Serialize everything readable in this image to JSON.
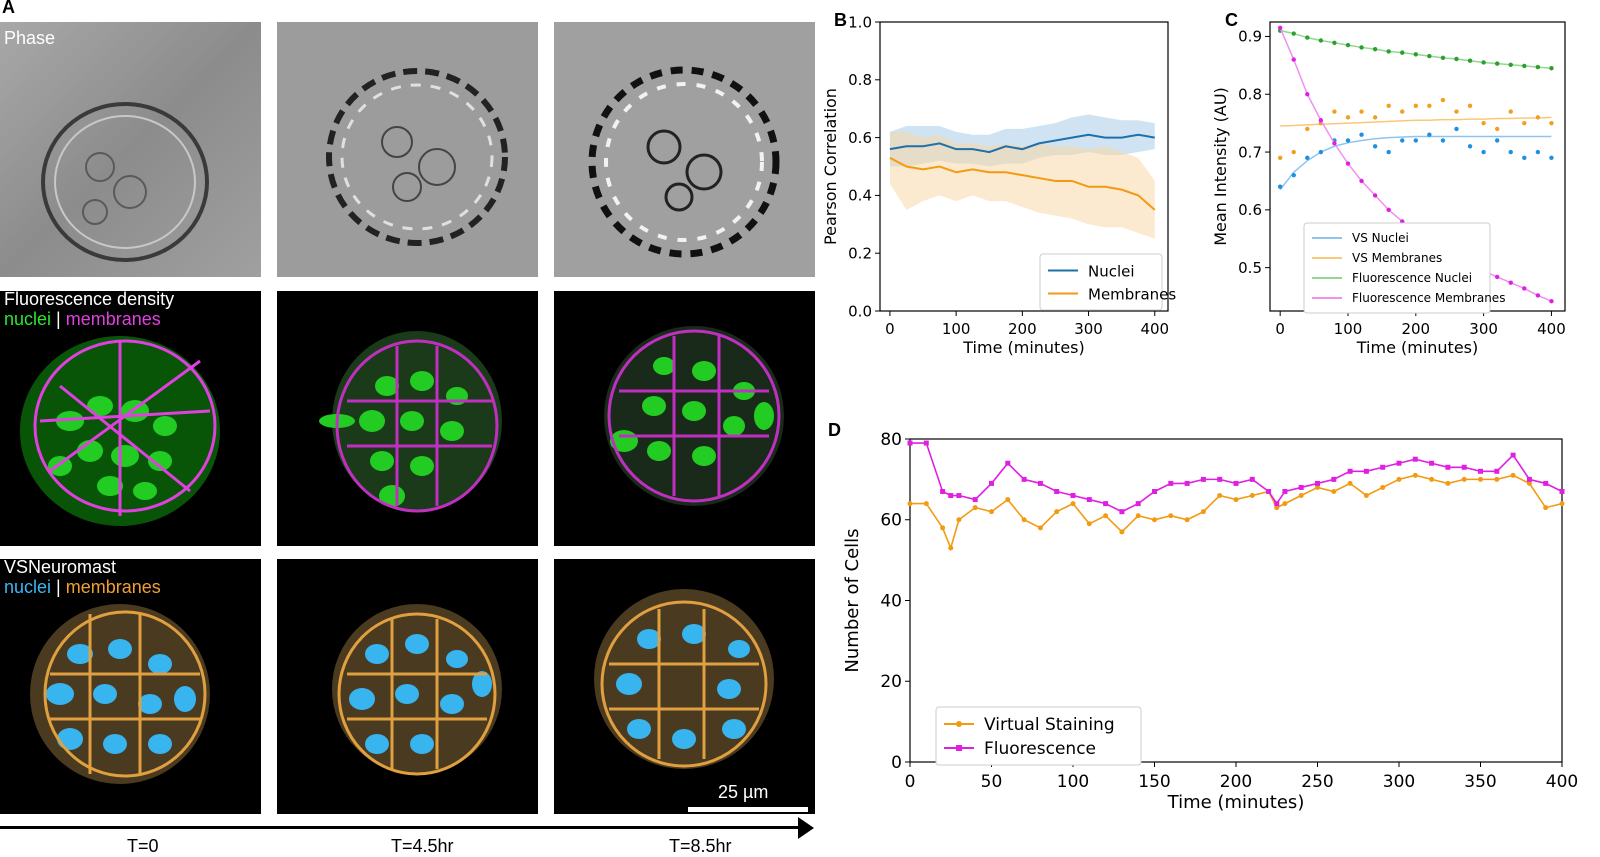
{
  "panel_letters": {
    "a": "A",
    "b": "B",
    "c": "C",
    "d": "D"
  },
  "panel_a": {
    "rows": [
      {
        "label_lines": [
          [
            {
              "text": "Phase",
              "color": "white"
            }
          ]
        ]
      },
      {
        "label_lines": [
          [
            {
              "text": "Fluorescence density",
              "color": "white"
            }
          ],
          [
            {
              "text": "nuclei",
              "color": "green"
            },
            {
              "text": " | ",
              "color": "white"
            },
            {
              "text": "membranes",
              "color": "magenta"
            }
          ]
        ]
      },
      {
        "label_lines": [
          [
            {
              "text": "VSNeuromast",
              "color": "white"
            }
          ],
          [
            {
              "text": "nuclei",
              "color": "blue"
            },
            {
              "text": " | ",
              "color": "white"
            },
            {
              "text": "membranes",
              "color": "orange"
            }
          ]
        ]
      }
    ],
    "scale_bar_label": "25 µm",
    "timepoints": [
      "T=0",
      "T=4.5hr",
      "T=8.5hr"
    ]
  },
  "chart_data": [
    {
      "panel": "B",
      "type": "line",
      "xlabel": "Time (minutes)",
      "ylabel": "Pearson Correlation",
      "xlim": [
        -15,
        420
      ],
      "ylim": [
        0.0,
        1.0
      ],
      "xticks": [
        0,
        100,
        200,
        300,
        400
      ],
      "yticks": [
        0.0,
        0.2,
        0.4,
        0.6,
        0.8,
        1.0
      ],
      "legend_position": "lower-right",
      "x": [
        0,
        25,
        50,
        75,
        100,
        125,
        150,
        175,
        200,
        225,
        250,
        275,
        300,
        325,
        350,
        375,
        400
      ],
      "series": [
        {
          "name": "Nuclei",
          "color": "#1f6fa8",
          "band_color": "#a9cce8",
          "values": [
            0.56,
            0.57,
            0.57,
            0.58,
            0.56,
            0.56,
            0.55,
            0.57,
            0.56,
            0.58,
            0.59,
            0.6,
            0.61,
            0.6,
            0.6,
            0.61,
            0.6
          ],
          "upper": [
            0.62,
            0.64,
            0.64,
            0.64,
            0.62,
            0.61,
            0.61,
            0.63,
            0.63,
            0.64,
            0.65,
            0.67,
            0.68,
            0.67,
            0.66,
            0.66,
            0.65
          ],
          "lower": [
            0.5,
            0.5,
            0.51,
            0.52,
            0.51,
            0.51,
            0.5,
            0.51,
            0.51,
            0.53,
            0.54,
            0.54,
            0.55,
            0.54,
            0.54,
            0.55,
            0.56
          ]
        },
        {
          "name": "Membranes",
          "color": "#f29b12",
          "band_color": "#f8d9a8",
          "values": [
            0.53,
            0.5,
            0.49,
            0.5,
            0.48,
            0.49,
            0.48,
            0.48,
            0.47,
            0.46,
            0.45,
            0.45,
            0.43,
            0.43,
            0.42,
            0.4,
            0.35
          ],
          "upper": [
            0.62,
            0.62,
            0.6,
            0.61,
            0.58,
            0.58,
            0.57,
            0.58,
            0.57,
            0.58,
            0.57,
            0.57,
            0.56,
            0.57,
            0.55,
            0.53,
            0.45
          ],
          "lower": [
            0.44,
            0.35,
            0.38,
            0.4,
            0.38,
            0.4,
            0.38,
            0.38,
            0.36,
            0.34,
            0.33,
            0.32,
            0.3,
            0.29,
            0.29,
            0.27,
            0.25
          ]
        }
      ]
    },
    {
      "panel": "C",
      "type": "scatter",
      "xlabel": "Time (minutes)",
      "ylabel": "Mean Intensity (AU)",
      "xlim": [
        -15,
        420
      ],
      "ylim": [
        0.425,
        0.925
      ],
      "xticks": [
        0,
        100,
        200,
        300,
        400
      ],
      "yticks": [
        0.5,
        0.6,
        0.7,
        0.8,
        0.9
      ],
      "legend_position": "lower-left",
      "x": [
        0,
        20,
        40,
        60,
        80,
        100,
        120,
        140,
        160,
        180,
        200,
        220,
        240,
        260,
        280,
        300,
        320,
        340,
        360,
        380,
        400
      ],
      "series": [
        {
          "name": "VS Nuclei",
          "color": "#1f8fe0",
          "fit_color": "#8fc4f0",
          "values": [
            0.64,
            0.66,
            0.69,
            0.7,
            0.72,
            0.72,
            0.73,
            0.71,
            0.7,
            0.72,
            0.72,
            0.73,
            0.72,
            0.74,
            0.71,
            0.7,
            0.72,
            0.7,
            0.69,
            0.7,
            0.69
          ],
          "fit": [
            0.635,
            0.665,
            0.685,
            0.7,
            0.71,
            0.716,
            0.72,
            0.723,
            0.725,
            0.726,
            0.727,
            0.727,
            0.727,
            0.727,
            0.727,
            0.727,
            0.727,
            0.727,
            0.727,
            0.727,
            0.727
          ]
        },
        {
          "name": "VS Membranes",
          "color": "#f0a020",
          "fit_color": "#f8c878",
          "values": [
            0.69,
            0.7,
            0.74,
            0.75,
            0.77,
            0.76,
            0.77,
            0.76,
            0.78,
            0.77,
            0.78,
            0.78,
            0.79,
            0.77,
            0.78,
            0.75,
            0.74,
            0.77,
            0.75,
            0.76,
            0.75
          ],
          "fit": [
            0.745,
            0.746,
            0.747,
            0.748,
            0.749,
            0.75,
            0.751,
            0.752,
            0.753,
            0.754,
            0.755,
            0.755,
            0.756,
            0.756,
            0.757,
            0.757,
            0.758,
            0.758,
            0.759,
            0.759,
            0.76
          ]
        },
        {
          "name": "Fluorescence Nuclei",
          "color": "#2ca02c",
          "fit_color": "#90d890",
          "values": [
            0.91,
            0.905,
            0.898,
            0.893,
            0.889,
            0.885,
            0.881,
            0.878,
            0.874,
            0.872,
            0.869,
            0.866,
            0.863,
            0.861,
            0.858,
            0.855,
            0.853,
            0.851,
            0.849,
            0.847,
            0.845
          ],
          "fit": [
            0.91,
            0.905,
            0.898,
            0.893,
            0.889,
            0.885,
            0.881,
            0.878,
            0.874,
            0.872,
            0.869,
            0.866,
            0.863,
            0.861,
            0.858,
            0.855,
            0.853,
            0.851,
            0.849,
            0.847,
            0.845
          ]
        },
        {
          "name": "Fluorescence Membranes",
          "color": "#e020e0",
          "fit_color": "#f090f0",
          "values": [
            0.915,
            0.86,
            0.8,
            0.755,
            0.715,
            0.68,
            0.65,
            0.625,
            0.6,
            0.58,
            0.562,
            0.546,
            0.53,
            0.517,
            0.505,
            0.494,
            0.484,
            0.474,
            0.464,
            0.452,
            0.442
          ],
          "fit": [
            0.915,
            0.86,
            0.8,
            0.755,
            0.715,
            0.68,
            0.65,
            0.625,
            0.6,
            0.58,
            0.562,
            0.546,
            0.53,
            0.517,
            0.505,
            0.494,
            0.484,
            0.474,
            0.464,
            0.452,
            0.442
          ]
        }
      ]
    },
    {
      "panel": "D",
      "type": "line",
      "xlabel": "Time (minutes)",
      "ylabel": "Number of Cells",
      "xlim": [
        0,
        400
      ],
      "ylim": [
        0,
        80
      ],
      "xticks": [
        0,
        50,
        100,
        150,
        200,
        250,
        300,
        350,
        400
      ],
      "yticks": [
        0,
        20,
        40,
        60,
        80
      ],
      "legend_position": "lower-left",
      "x": [
        0,
        10,
        20,
        25,
        30,
        40,
        50,
        60,
        70,
        80,
        90,
        100,
        110,
        120,
        130,
        140,
        150,
        160,
        170,
        180,
        190,
        200,
        210,
        220,
        225,
        230,
        240,
        250,
        260,
        270,
        280,
        290,
        300,
        310,
        320,
        330,
        340,
        350,
        360,
        370,
        380,
        390,
        400
      ],
      "series": [
        {
          "name": "Virtual Staining",
          "color": "#f29b12",
          "marker": "circle",
          "values": [
            64,
            64,
            58,
            53,
            60,
            63,
            62,
            65,
            60,
            58,
            62,
            64,
            59,
            61,
            57,
            61,
            60,
            61,
            60,
            62,
            66,
            65,
            66,
            67,
            63,
            64,
            66,
            68,
            67,
            69,
            66,
            68,
            70,
            71,
            70,
            69,
            70,
            70,
            70,
            71,
            69,
            63,
            64
          ]
        },
        {
          "name": "Fluorescence",
          "color": "#e020e0",
          "marker": "square",
          "values": [
            79,
            79,
            67,
            66,
            66,
            65,
            69,
            74,
            70,
            69,
            67,
            66,
            65,
            64,
            62,
            64,
            67,
            69,
            69,
            70,
            70,
            69,
            70,
            67,
            64,
            67,
            68,
            69,
            70,
            72,
            72,
            73,
            74,
            75,
            74,
            73,
            73,
            72,
            72,
            76,
            70,
            69,
            67
          ]
        }
      ]
    }
  ]
}
